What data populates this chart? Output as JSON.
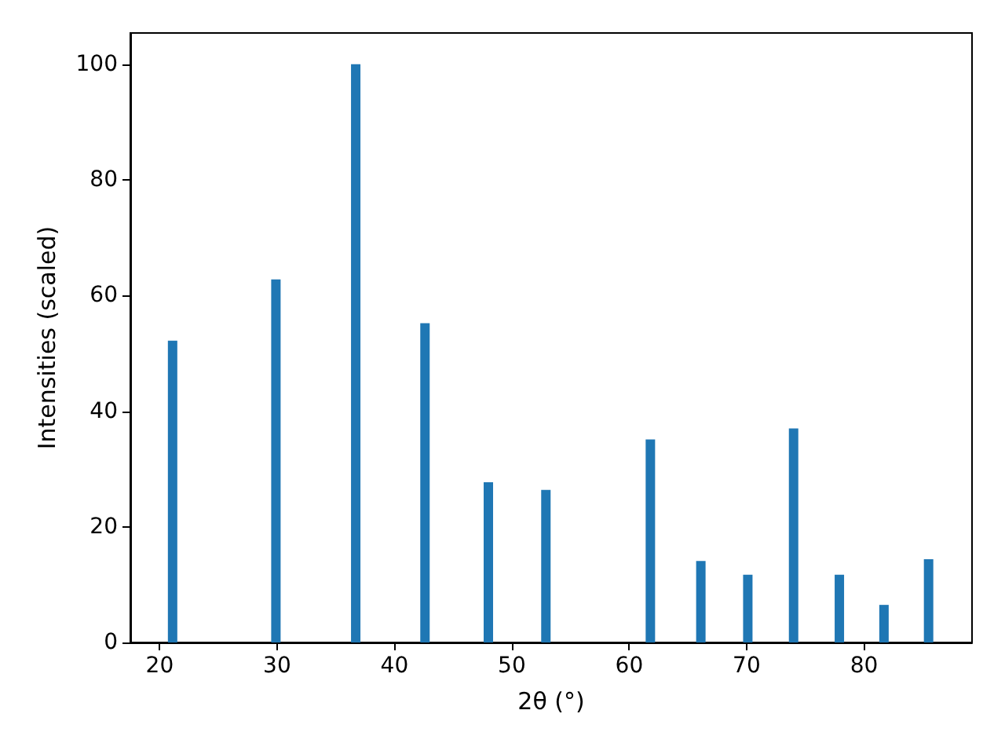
{
  "chart_data": {
    "type": "bar",
    "xlabel": "2θ (°)",
    "ylabel": "Intensities (scaled)",
    "x": [
      21.1,
      29.9,
      36.7,
      42.6,
      48.0,
      52.9,
      61.8,
      66.1,
      70.1,
      74.0,
      77.9,
      81.7,
      85.5
    ],
    "series": [
      {
        "color": "#1f77b4",
        "values": [
          52.2,
          62.8,
          100,
          55.2,
          27.7,
          26.4,
          35.1,
          14.1,
          11.7,
          37.0,
          11.7,
          6.5,
          14.4
        ]
      }
    ],
    "xlim": [
      17.5,
      89.2
    ],
    "xticks": [
      20,
      30,
      40,
      50,
      60,
      70,
      80
    ],
    "ylim": [
      0,
      105.4
    ],
    "yticks": [
      0,
      20,
      40,
      60,
      80,
      100
    ]
  }
}
